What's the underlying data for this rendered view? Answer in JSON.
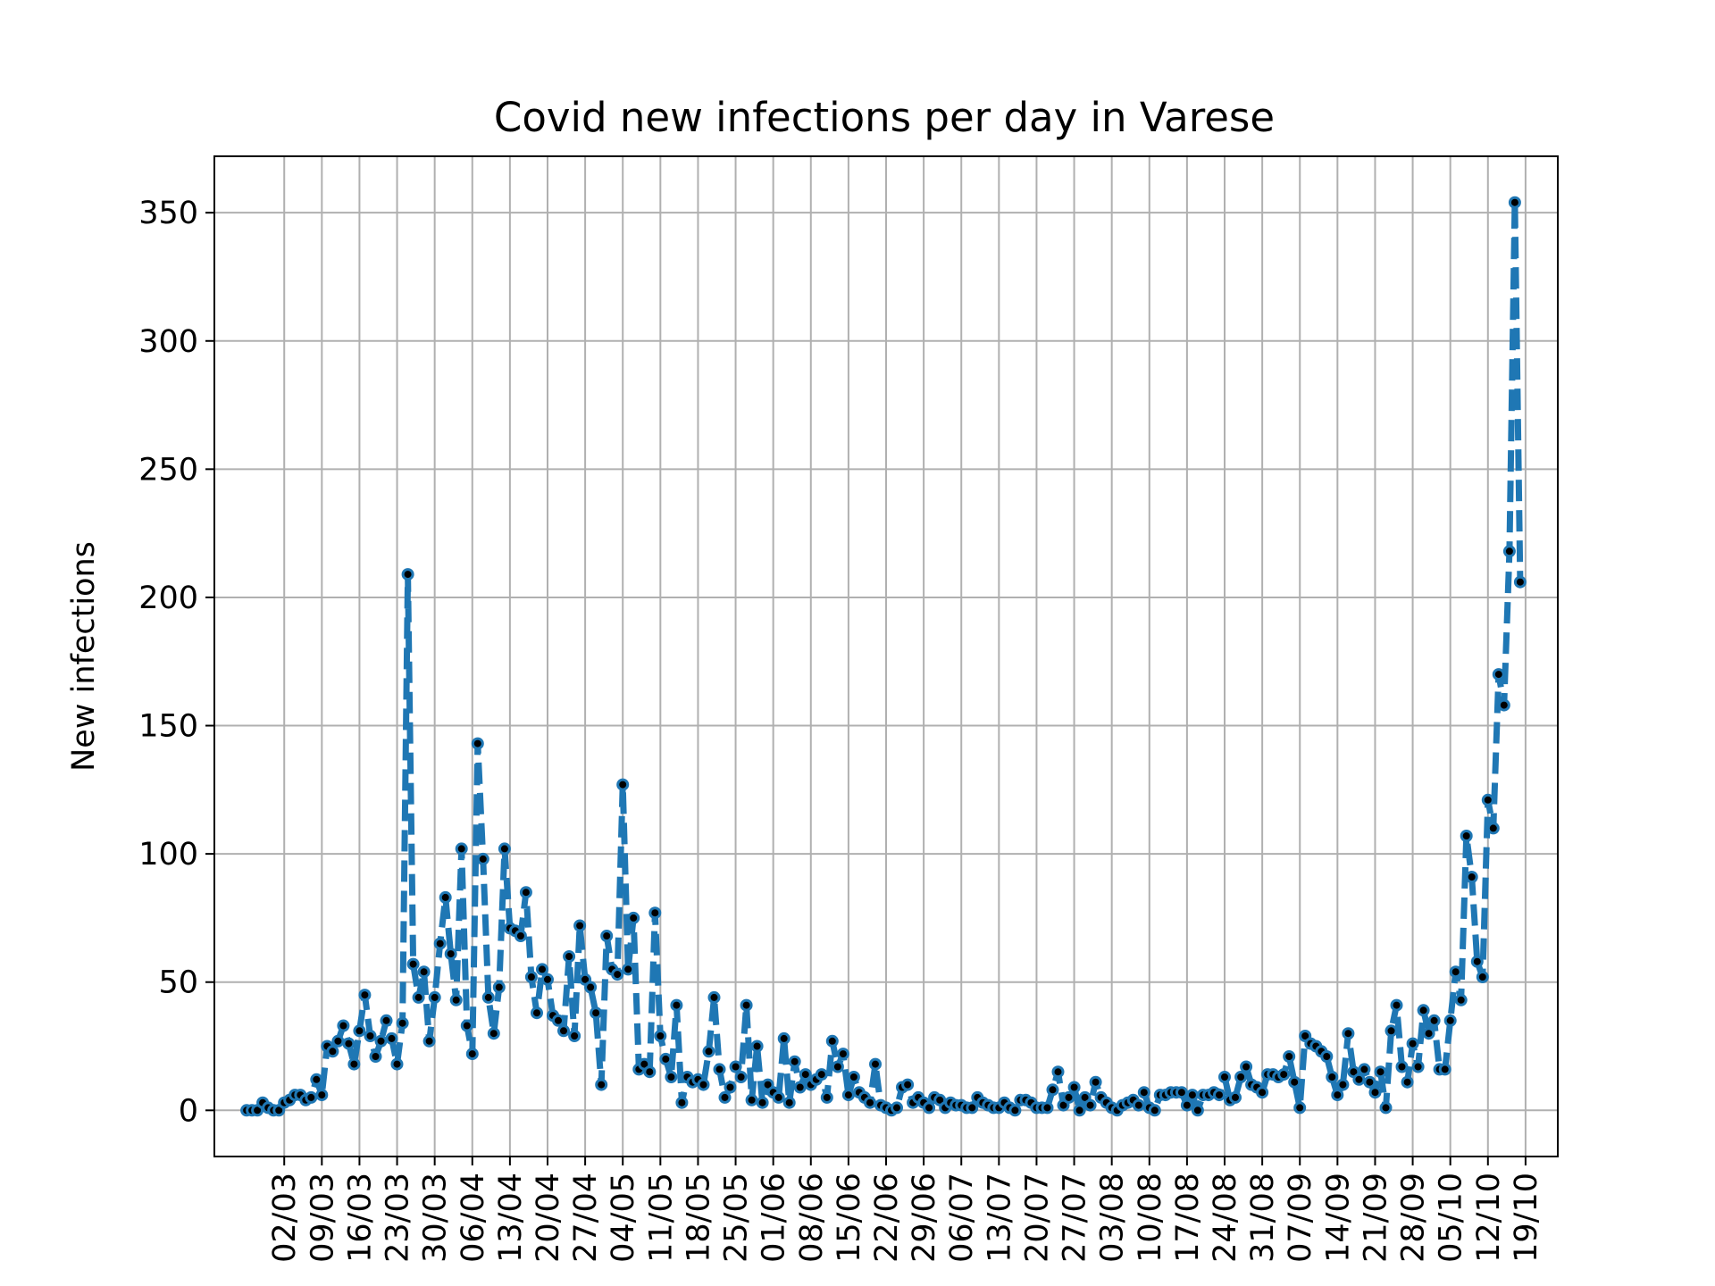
{
  "chart_data": {
    "type": "line",
    "title": "Covid new infections per day in Varese",
    "xlabel": "",
    "ylabel": "New infections",
    "ylim": [
      -18,
      372
    ],
    "yticks": [
      0,
      50,
      100,
      150,
      200,
      250,
      300,
      350
    ],
    "ytick_labels": [
      "0",
      "50",
      "100",
      "150",
      "200",
      "250",
      "300",
      "350"
    ],
    "x_start": "2020-02-24",
    "x_end": "2020-10-19",
    "x_range": [
      "2020-02-18",
      "2020-10-25"
    ],
    "xtick_dates": [
      "2020-03-02",
      "2020-03-09",
      "2020-03-16",
      "2020-03-23",
      "2020-03-30",
      "2020-04-06",
      "2020-04-13",
      "2020-04-20",
      "2020-04-27",
      "2020-05-04",
      "2020-05-11",
      "2020-05-18",
      "2020-05-25",
      "2020-06-01",
      "2020-06-08",
      "2020-06-15",
      "2020-06-22",
      "2020-06-29",
      "2020-07-06",
      "2020-07-13",
      "2020-07-20",
      "2020-07-27",
      "2020-08-03",
      "2020-08-10",
      "2020-08-17",
      "2020-08-24",
      "2020-08-31",
      "2020-09-07",
      "2020-09-14",
      "2020-09-21",
      "2020-09-28",
      "2020-10-05",
      "2020-10-12",
      "2020-10-19"
    ],
    "xtick_labels": [
      "02/03",
      "09/03",
      "16/03",
      "23/03",
      "30/03",
      "06/04",
      "13/04",
      "20/04",
      "27/04",
      "04/05",
      "11/05",
      "18/05",
      "25/05",
      "01/06",
      "08/06",
      "15/06",
      "22/06",
      "29/06",
      "06/07",
      "13/07",
      "20/07",
      "27/07",
      "03/08",
      "10/08",
      "17/08",
      "24/08",
      "31/08",
      "07/09",
      "14/09",
      "21/09",
      "28/09",
      "05/10",
      "12/10",
      "19/10"
    ],
    "grid": true,
    "series": [
      {
        "line_color": "#1f77b4",
        "line_style": "dashed",
        "marker_color": "#000000",
        "values": [
          0,
          0,
          0,
          3,
          1,
          0,
          0,
          3,
          4,
          6,
          6,
          4,
          5,
          12,
          6,
          25,
          23,
          27,
          33,
          26,
          18,
          31,
          45,
          29,
          21,
          27,
          35,
          28,
          18,
          34,
          209,
          57,
          44,
          54,
          27,
          44,
          65,
          83,
          61,
          43,
          102,
          33,
          22,
          143,
          98,
          44,
          30,
          48,
          102,
          71,
          70,
          68,
          85,
          52,
          38,
          55,
          51,
          37,
          35,
          31,
          60,
          29,
          72,
          51,
          48,
          38,
          10,
          68,
          55,
          53,
          127,
          55,
          75,
          16,
          18,
          15,
          77,
          29,
          20,
          13,
          41,
          3,
          13,
          11,
          12,
          10,
          23,
          44,
          16,
          5,
          9,
          17,
          13,
          41,
          4,
          25,
          3,
          10,
          7,
          5,
          28,
          3,
          19,
          9,
          14,
          10,
          12,
          14,
          5,
          27,
          17,
          22,
          6,
          13,
          7,
          5,
          3,
          18,
          2,
          1,
          0,
          1,
          9,
          10,
          3,
          5,
          3,
          1,
          5,
          4,
          1,
          3,
          2,
          2,
          1,
          1,
          5,
          3,
          2,
          1,
          1,
          3,
          1,
          0,
          4,
          4,
          3,
          1,
          1,
          1,
          8,
          15,
          2,
          5,
          9,
          0,
          5,
          2,
          11,
          5,
          3,
          1,
          0,
          2,
          3,
          4,
          2,
          7,
          1,
          0,
          6,
          6,
          7,
          7,
          7,
          2,
          6,
          0,
          6,
          6,
          7,
          6,
          13,
          4,
          5,
          13,
          17,
          10,
          9,
          7,
          14,
          14,
          13,
          14,
          21,
          11,
          1,
          29,
          26,
          25,
          23,
          21,
          13,
          6,
          10,
          30,
          15,
          12,
          16,
          11,
          7,
          15,
          1,
          31,
          41,
          17,
          11,
          26,
          17,
          39,
          30,
          35,
          16,
          16,
          35,
          54,
          43,
          107,
          91,
          58,
          52,
          121,
          110,
          170,
          158,
          218,
          354,
          206
        ]
      }
    ]
  }
}
